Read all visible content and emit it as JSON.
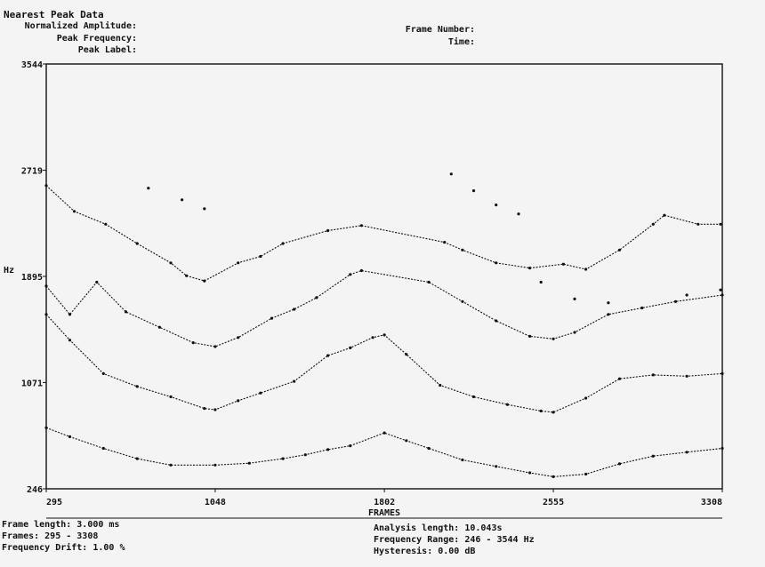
{
  "header": {
    "title": "Nearest Peak Data",
    "normalized_amplitude_label": "Normalized Amplitude:",
    "peak_frequency_label": "Peak Frequency:",
    "peak_label_label": "Peak Label:",
    "frame_number_label": "Frame Number:",
    "time_label": "Time:"
  },
  "footer": {
    "frame_length": "Frame length: 3.000 ms",
    "frames": "Frames: 295 - 3308",
    "frequency_drift": "Frequency Drift: 1.00 %",
    "analysis_length": "Analysis length: 10.043s",
    "frequency_range": "Frequency Range: 246 - 3544 Hz",
    "hysteresis": "Hysteresis: 0.00 dB"
  },
  "chart_data": {
    "type": "scatter",
    "title": "Nearest Peak Data",
    "xlabel": "FRAMES",
    "ylabel": "Hz",
    "xlim": [
      295,
      3308
    ],
    "ylim": [
      246,
      3544
    ],
    "x_ticks": [
      "295",
      "1048",
      "1802",
      "2555",
      "3308"
    ],
    "y_ticks": [
      "246",
      "1071",
      "1895",
      "2719",
      "3544"
    ],
    "grid": false,
    "color": "#111111",
    "series": [
      {
        "x": [
          295,
          400,
          550,
          700,
          850,
          1048,
          1200,
          1350,
          1450,
          1550,
          1650,
          1802,
          1900,
          2000,
          2150,
          2300,
          2450,
          2555,
          2700,
          2850,
          3000,
          3150,
          3308
        ],
        "y": [
          720,
          650,
          560,
          480,
          430,
          430,
          445,
          480,
          510,
          550,
          580,
          680,
          620,
          560,
          470,
          420,
          370,
          340,
          360,
          440,
          500,
          530,
          560
        ]
      },
      {
        "x": [
          295,
          400,
          550,
          700,
          850,
          1000,
          1048,
          1150,
          1250,
          1400,
          1550,
          1650,
          1750,
          1802,
          1900,
          2050,
          2200,
          2350,
          2500,
          2555,
          2700,
          2850,
          3000,
          3150,
          3308
        ],
        "y": [
          1600,
          1400,
          1140,
          1040,
          960,
          870,
          860,
          930,
          990,
          1080,
          1280,
          1340,
          1420,
          1440,
          1290,
          1050,
          960,
          900,
          850,
          840,
          950,
          1100,
          1130,
          1120,
          1140
        ]
      },
      {
        "x": [
          295,
          400,
          520,
          650,
          800,
          950,
          1048,
          1150,
          1300,
          1400,
          1500,
          1650,
          1700,
          2000,
          2150,
          2300,
          2450,
          2555,
          2650,
          2800,
          2950,
          3100,
          3308
        ],
        "y": [
          1820,
          1600,
          1850,
          1620,
          1500,
          1380,
          1350,
          1420,
          1570,
          1640,
          1730,
          1910,
          1940,
          1850,
          1700,
          1550,
          1430,
          1410,
          1460,
          1600,
          1650,
          1700,
          1750
        ]
      },
      {
        "x": [
          295,
          420,
          560,
          700,
          850,
          920,
          1000,
          1150,
          1250,
          1350,
          1550,
          1700,
          2070,
          2150,
          2300,
          2450,
          2600,
          2700,
          2850,
          3000,
          3050,
          3200,
          3300
        ],
        "y": [
          2600,
          2400,
          2300,
          2150,
          2000,
          1900,
          1860,
          2000,
          2050,
          2150,
          2250,
          2290,
          2160,
          2100,
          2000,
          1960,
          1990,
          1950,
          2100,
          2300,
          2370,
          2300,
          2300
        ]
      },
      {
        "x": [
          750,
          900,
          1000,
          2100,
          2200,
          2300,
          2400,
          2500,
          2650,
          2800,
          3150,
          3300
        ],
        "y": [
          2580,
          2490,
          2420,
          2690,
          2560,
          2450,
          2380,
          1850,
          1720,
          1690,
          1750,
          1790
        ]
      }
    ]
  }
}
